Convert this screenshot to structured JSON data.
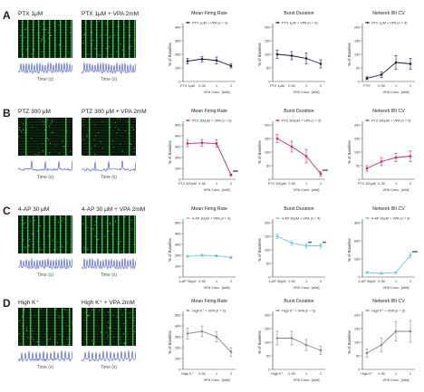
{
  "rows": [
    {
      "letter": "A",
      "raster_left": "PTX 1μM",
      "raster_right": "PTX 1μM + VPA 2mM",
      "time_label": "Time (s)",
      "accent": "#1a1a4a",
      "drug_short": "PTX",
      "drug_conc": "1μM",
      "trace_style": "dense"
    },
    {
      "letter": "B",
      "raster_left": "PTZ 300 μM",
      "raster_right": "PTZ 300 μM + VPA 2mM",
      "time_label": "Time (s)",
      "accent": "#cc2266",
      "drug_short": "PTZ",
      "drug_conc": "300μM",
      "trace_style": "sparse"
    },
    {
      "letter": "C",
      "raster_left": "4-AP 30 μM",
      "raster_right": "4-AP 30 μM + VPA 2mM",
      "time_label": "Time (s)",
      "accent": "#6cc5ea",
      "drug_short": "4-AP",
      "drug_conc": "30μM",
      "trace_style": "dense"
    },
    {
      "letter": "D",
      "raster_left": "High K⁺",
      "raster_right": "High K⁺ + VPA 2mM",
      "time_label": "Time (s)",
      "accent": "#888888",
      "drug_short": "High K⁺",
      "drug_conc": "",
      "trace_style": "noisy"
    }
  ],
  "chart_data": [
    {
      "type": "line",
      "row": "A",
      "title": "Mean Firing Rate",
      "legend": "PTX 1μM + VPA (n = 4)",
      "ylabel": "% of Baseline",
      "xlabel": "VPA Conc. [mM]",
      "categories": [
        "PTX 1μM",
        "0.35",
        "1",
        "2"
      ],
      "values": [
        150,
        165,
        155,
        115
      ],
      "errors": [
        20,
        20,
        25,
        15
      ],
      "ylim": [
        0,
        400
      ],
      "yticks": [
        0,
        100,
        200,
        300,
        400
      ],
      "significance": []
    },
    {
      "type": "line",
      "row": "A",
      "title": "Burst Duration",
      "legend": "PTX 1μM + VPA (n = 4)",
      "ylabel": "% of Baseline",
      "xlabel": "VPA Conc. [mM]",
      "categories": [
        "PTX 1μM",
        "0.35",
        "1",
        "2"
      ],
      "values": [
        100,
        95,
        85,
        65
      ],
      "errors": [
        15,
        15,
        20,
        15
      ],
      "ylim": [
        0,
        200
      ],
      "yticks": [
        0,
        50,
        100,
        150,
        200
      ],
      "significance": []
    },
    {
      "type": "line",
      "row": "A",
      "title": "Network IBI CV",
      "legend": "PTX 1μM + VPA (n = 4)",
      "ylabel": "% of Baseline",
      "xlabel": "VPA Conc. [mM]",
      "categories": [
        "PTX",
        "0.35",
        "1",
        "2"
      ],
      "values": [
        12,
        25,
        70,
        65
      ],
      "errors": [
        5,
        10,
        25,
        20
      ],
      "ylim": [
        0,
        200
      ],
      "yticks": [
        0,
        50,
        100,
        150,
        200
      ],
      "significance": []
    },
    {
      "type": "line",
      "row": "B",
      "title": "Mean Firing Rate",
      "legend": "PTZ 300μM + VPA (n = 5)",
      "ylabel": "% of Baseline",
      "xlabel": "VPA Conc. [mM]",
      "categories": [
        "PTZ 300μM",
        "0.35",
        "1",
        "2"
      ],
      "values": [
        330,
        335,
        330,
        40
      ],
      "errors": [
        30,
        30,
        35,
        10
      ],
      "ylim": [
        0,
        500
      ],
      "yticks": [
        0,
        100,
        200,
        300,
        400,
        500
      ],
      "significance": [
        "",
        "",
        "",
        "***"
      ]
    },
    {
      "type": "line",
      "row": "B",
      "title": "Burst Duration",
      "legend": "PTZ 300μM + VPA (n = 5)",
      "ylabel": "% of Baseline",
      "xlabel": "VPA Conc. [mM]",
      "categories": [
        "PTZ 300μM",
        "0.35",
        "1",
        "2"
      ],
      "values": [
        150,
        120,
        85,
        20
      ],
      "errors": [
        15,
        20,
        25,
        8
      ],
      "ylim": [
        0,
        200
      ],
      "yticks": [
        0,
        50,
        100,
        150,
        200
      ],
      "significance": [
        "",
        "",
        "",
        "***"
      ]
    },
    {
      "type": "line",
      "row": "B",
      "title": "Network IBI CV",
      "legend": "PTZ 300μM + VPA (n = 5)",
      "ylabel": "% of Baseline",
      "xlabel": "VPA Conc. [mM]",
      "categories": [
        "PTZ 300μM",
        "0.35",
        "1",
        "2"
      ],
      "values": [
        40,
        65,
        80,
        85
      ],
      "errors": [
        10,
        15,
        15,
        20
      ],
      "ylim": [
        0,
        200
      ],
      "yticks": [
        0,
        50,
        100,
        150,
        200
      ],
      "significance": []
    },
    {
      "type": "line",
      "row": "C",
      "title": "Mean Firing Rate",
      "legend": "4-AP 30μM + VPA (n = 4)",
      "ylabel": "% of Baseline",
      "xlabel": "VPA Conc. [mM]",
      "categories": [
        "4-AP 30μM",
        "0.35",
        "1",
        "2"
      ],
      "values": [
        190,
        200,
        195,
        180
      ],
      "errors": [
        10,
        10,
        10,
        10
      ],
      "ylim": [
        0,
        500
      ],
      "yticks": [
        0,
        100,
        200,
        300,
        400,
        500
      ],
      "significance": []
    },
    {
      "type": "line",
      "row": "C",
      "title": "Burst Duration",
      "legend": "4-AP 30μM + VPA (n = 4)",
      "ylabel": "% of Baseline",
      "xlabel": "VPA Conc. [mM]",
      "categories": [
        "4-AP 30μM",
        "0.35",
        "1",
        "2"
      ],
      "values": [
        150,
        125,
        115,
        115
      ],
      "errors": [
        8,
        8,
        8,
        8
      ],
      "ylim": [
        0,
        200
      ],
      "yticks": [
        0,
        50,
        100,
        150,
        200
      ],
      "significance": [
        "",
        "",
        "**",
        "**"
      ]
    },
    {
      "type": "line",
      "row": "C",
      "title": "Network IBI CV",
      "legend": "4-AP 30μM + VPA (n = 4)",
      "ylabel": "% of Baseline",
      "xlabel": "VPA Conc. [mM]",
      "categories": [
        "4-AP 30μM",
        "0.35",
        "1",
        "2"
      ],
      "values": [
        25,
        20,
        25,
        120
      ],
      "errors": [
        5,
        5,
        5,
        15
      ],
      "ylim": [
        0,
        300
      ],
      "yticks": [
        0,
        100,
        200,
        300
      ],
      "significance": [
        "",
        "",
        "",
        "***"
      ]
    },
    {
      "type": "line",
      "row": "D",
      "title": "Mean Firing Rate",
      "legend": "High K⁺ + VPA (n = 5)",
      "ylabel": "% of Baseline",
      "xlabel": "VPA Conc. [mM]",
      "categories": [
        "High K⁺",
        "0.35",
        "1",
        "2"
      ],
      "values": [
        330,
        350,
        300,
        160
      ],
      "errors": [
        50,
        50,
        45,
        40
      ],
      "ylim": [
        0,
        500
      ],
      "yticks": [
        0,
        100,
        200,
        300,
        400,
        500
      ],
      "significance": []
    },
    {
      "type": "line",
      "row": "D",
      "title": "Burst Duration",
      "legend": "High K⁺ + VPA (n = 5)",
      "ylabel": "% of Baseline",
      "xlabel": "VPA Conc. [mM]",
      "categories": [
        "High K⁺",
        "0.35",
        "1",
        "2"
      ],
      "values": [
        115,
        115,
        90,
        70
      ],
      "errors": [
        25,
        25,
        20,
        15
      ],
      "ylim": [
        0,
        200
      ],
      "yticks": [
        0,
        50,
        100,
        150,
        200
      ],
      "significance": []
    },
    {
      "type": "line",
      "row": "D",
      "title": "Network IBI CV",
      "legend": "High K⁺ + VPA (n = 5)",
      "ylabel": "% of Baseline",
      "xlabel": "VPA Conc. [mM]",
      "categories": [
        "High K⁺",
        "0.35",
        "1",
        "2"
      ],
      "values": [
        60,
        90,
        140,
        140
      ],
      "errors": [
        15,
        25,
        35,
        40
      ],
      "ylim": [
        0,
        200
      ],
      "yticks": [
        0,
        50,
        100,
        150,
        200
      ],
      "significance": []
    }
  ]
}
